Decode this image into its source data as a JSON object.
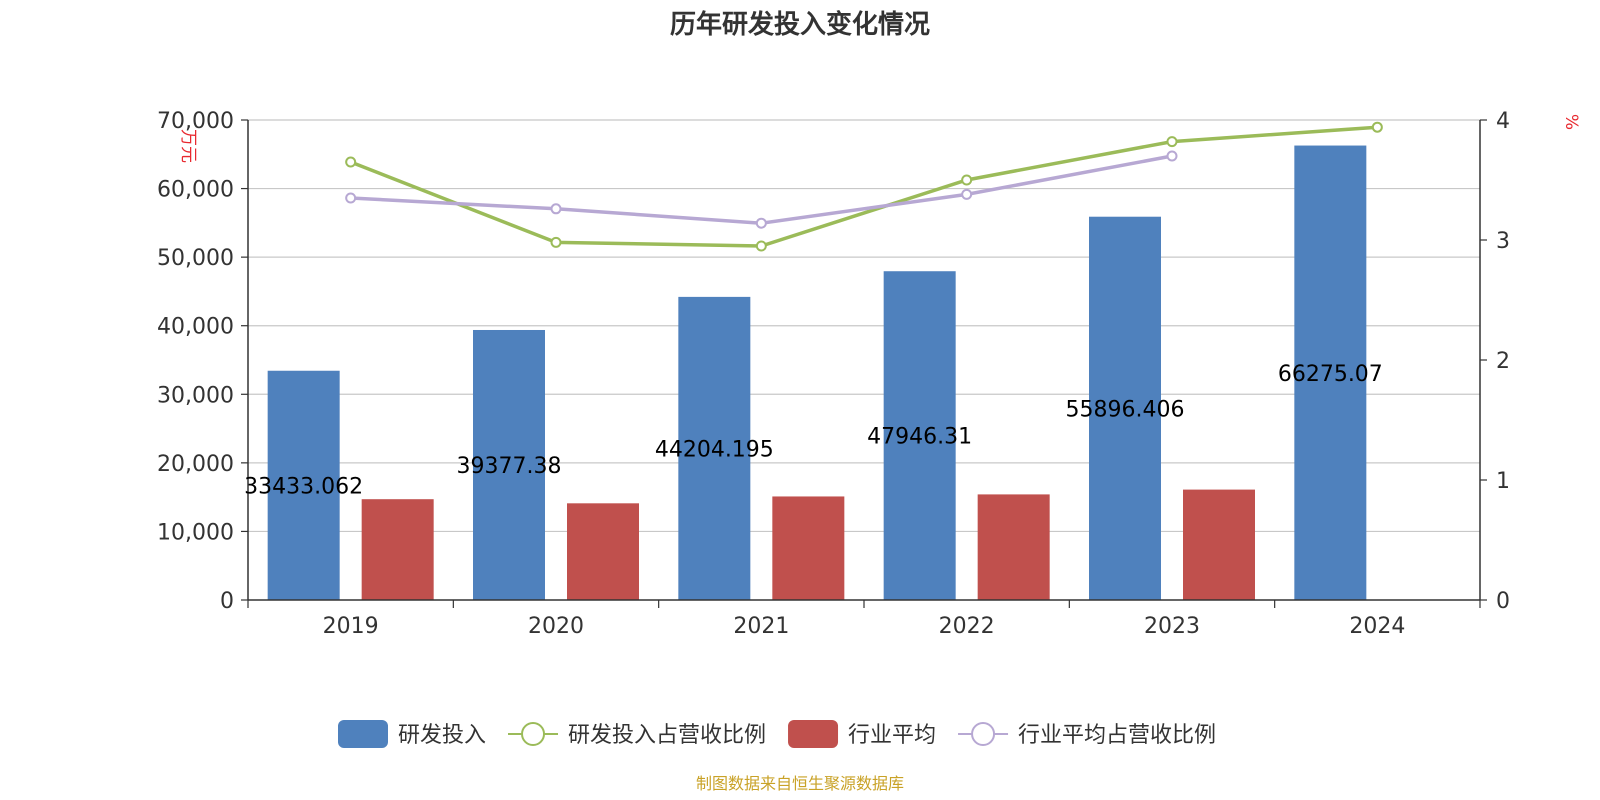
{
  "chart_data": {
    "type": "bar",
    "title": "历年研发投入变化情况",
    "source": "制图数据来自恒生聚源数据库",
    "categories": [
      "2019",
      "2020",
      "2021",
      "2022",
      "2023",
      "2024"
    ],
    "y_left": {
      "unit": "万元",
      "ylim": [
        0,
        70000
      ],
      "ticks": [
        "0",
        "10,000",
        "20,000",
        "30,000",
        "40,000",
        "50,000",
        "60,000",
        "70,000"
      ]
    },
    "y_right": {
      "unit": "%",
      "ylim": [
        0,
        4
      ],
      "ticks": [
        "0",
        "1",
        "2",
        "3",
        "4"
      ]
    },
    "series": [
      {
        "name": "研发投入",
        "kind": "bar",
        "axis": "left",
        "color": "#4f81bd",
        "values": [
          33433.062,
          39377.38,
          44204.195,
          47946.31,
          55896.406,
          66275.07
        ],
        "labels": [
          "33433.062",
          "39377.38",
          "44204.195",
          "47946.31",
          "55896.406",
          "66275.07"
        ]
      },
      {
        "name": "研发投入占营收比例",
        "kind": "line",
        "axis": "right",
        "color": "#9bbb59",
        "values": [
          3.65,
          2.98,
          2.95,
          3.5,
          3.82,
          3.94
        ]
      },
      {
        "name": "行业平均",
        "kind": "bar",
        "axis": "left",
        "color": "#c0504d",
        "values": [
          14700,
          14100,
          15100,
          15400,
          16100,
          null
        ]
      },
      {
        "name": "行业平均占营收比例",
        "kind": "line",
        "axis": "right",
        "color": "#b7a8d3",
        "values": [
          3.35,
          3.26,
          3.14,
          3.38,
          3.7,
          null
        ]
      }
    ]
  }
}
